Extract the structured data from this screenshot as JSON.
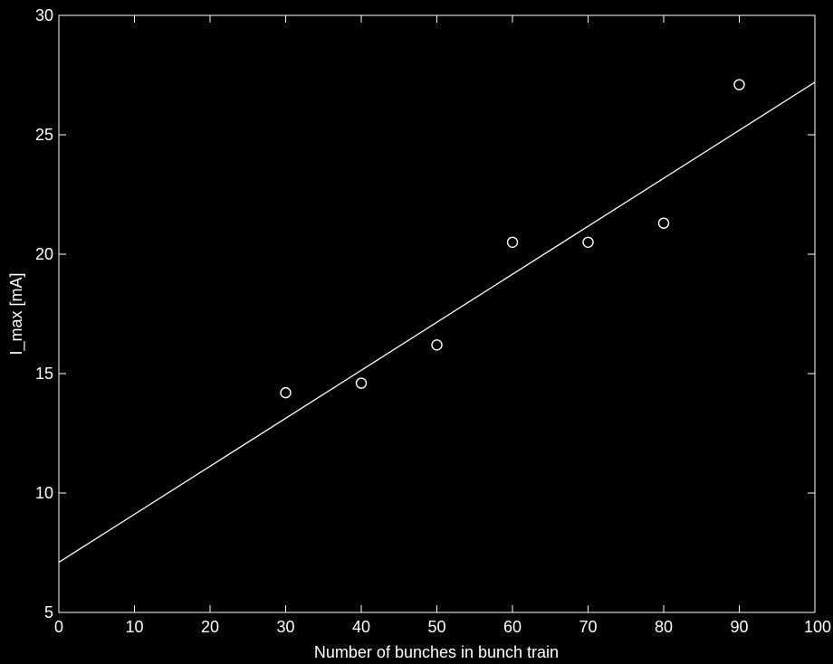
{
  "chart_data": {
    "type": "scatter",
    "xlabel": "Number of bunches in bunch train",
    "ylabel": "I_max [mA]",
    "xlim": [
      0,
      100
    ],
    "ylim": [
      5,
      30
    ],
    "xticks": [
      0,
      10,
      20,
      30,
      40,
      50,
      60,
      70,
      80,
      90,
      100
    ],
    "yticks": [
      5,
      10,
      15,
      20,
      25,
      30
    ],
    "grid": false,
    "series": [
      {
        "marker": "circle",
        "x": [
          30,
          40,
          50,
          60,
          70,
          80,
          90
        ],
        "y": [
          14.2,
          14.6,
          16.2,
          20.5,
          20.5,
          21.3,
          27.1
        ]
      }
    ],
    "fit_line": {
      "x": [
        0,
        100
      ],
      "y": [
        7.1,
        27.2
      ]
    },
    "colors": {
      "background": "#000000",
      "foreground": "#ffffff"
    }
  }
}
